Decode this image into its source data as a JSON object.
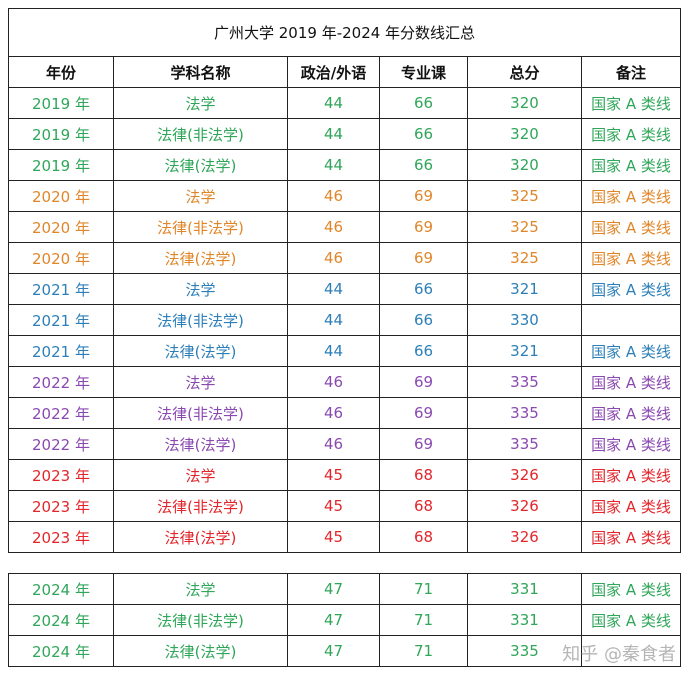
{
  "title": "广州大学 2019 年-2024 年分数线汇总",
  "headers": [
    "年份",
    "学科名称",
    "政治/外语",
    "专业课",
    "总分",
    "备注"
  ],
  "colors": {
    "green": "#2fa659",
    "orange": "#e0862a",
    "blue": "#2c7fb8",
    "purple": "#8a49b0",
    "red": "#e2262b"
  },
  "rows": [
    {
      "year": "2019 年",
      "subject": "法学",
      "politics": "44",
      "major": "66",
      "total": "320",
      "note": "国家 A 类线",
      "color": "green"
    },
    {
      "year": "2019 年",
      "subject": "法律(非法学)",
      "politics": "44",
      "major": "66",
      "total": "320",
      "note": "国家 A 类线",
      "color": "green"
    },
    {
      "year": "2019 年",
      "subject": "法律(法学)",
      "politics": "44",
      "major": "66",
      "total": "320",
      "note": "国家 A 类线",
      "color": "green"
    },
    {
      "year": "2020 年",
      "subject": "法学",
      "politics": "46",
      "major": "69",
      "total": "325",
      "note": "国家 A 类线",
      "color": "orange"
    },
    {
      "year": "2020 年",
      "subject": "法律(非法学)",
      "politics": "46",
      "major": "69",
      "total": "325",
      "note": "国家 A 类线",
      "color": "orange"
    },
    {
      "year": "2020 年",
      "subject": "法律(法学)",
      "politics": "46",
      "major": "69",
      "total": "325",
      "note": "国家 A 类线",
      "color": "orange"
    },
    {
      "year": "2021 年",
      "subject": "法学",
      "politics": "44",
      "major": "66",
      "total": "321",
      "note": "国家 A 类线",
      "color": "blue"
    },
    {
      "year": "2021 年",
      "subject": "法律(非法学)",
      "politics": "44",
      "major": "66",
      "total": "330",
      "note": "",
      "color": "blue"
    },
    {
      "year": "2021 年",
      "subject": "法律(法学)",
      "politics": "44",
      "major": "66",
      "total": "321",
      "note": "国家 A 类线",
      "color": "blue"
    },
    {
      "year": "2022 年",
      "subject": "法学",
      "politics": "46",
      "major": "69",
      "total": "335",
      "note": "国家 A 类线",
      "color": "purple"
    },
    {
      "year": "2022 年",
      "subject": "法律(非法学)",
      "politics": "46",
      "major": "69",
      "total": "335",
      "note": "国家 A 类线",
      "color": "purple"
    },
    {
      "year": "2022 年",
      "subject": "法律(法学)",
      "politics": "46",
      "major": "69",
      "total": "335",
      "note": "国家 A 类线",
      "color": "purple"
    },
    {
      "year": "2023 年",
      "subject": "法学",
      "politics": "45",
      "major": "68",
      "total": "326",
      "note": "国家 A 类线",
      "color": "red"
    },
    {
      "year": "2023 年",
      "subject": "法律(非法学)",
      "politics": "45",
      "major": "68",
      "total": "326",
      "note": "国家 A 类线",
      "color": "red"
    },
    {
      "year": "2023 年",
      "subject": "法律(法学)",
      "politics": "45",
      "major": "68",
      "total": "326",
      "note": "国家 A 类线",
      "color": "red"
    }
  ],
  "rows2024": [
    {
      "year": "2024 年",
      "subject": "法学",
      "politics": "47",
      "major": "71",
      "total": "331",
      "note": "国家 A 类线",
      "color": "green"
    },
    {
      "year": "2024 年",
      "subject": "法律(非法学)",
      "politics": "47",
      "major": "71",
      "total": "331",
      "note": "国家 A 类线",
      "color": "green"
    },
    {
      "year": "2024 年",
      "subject": "法律(法学)",
      "politics": "47",
      "major": "71",
      "total": "335",
      "note": "",
      "color": "green"
    }
  ],
  "watermark": "知乎 @秦食者"
}
